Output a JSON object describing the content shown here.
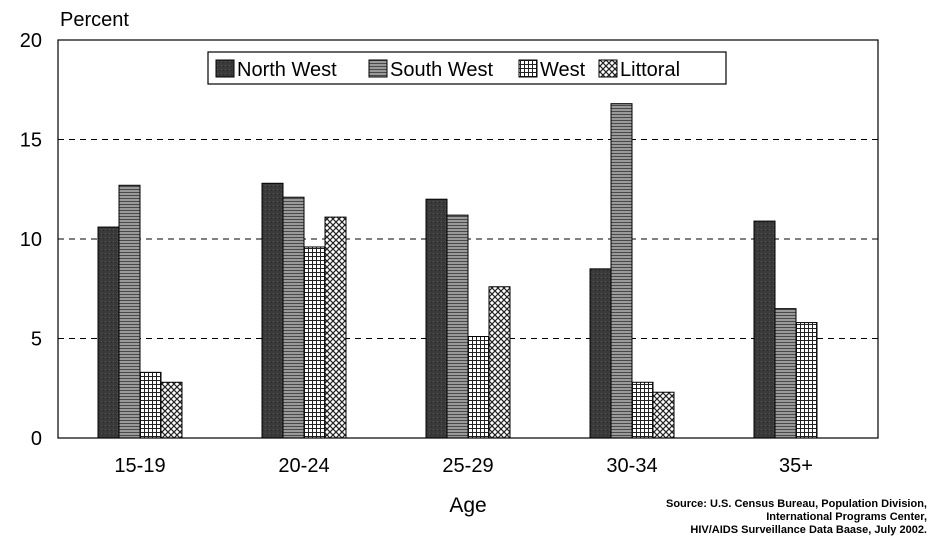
{
  "chart_data": {
    "type": "bar",
    "ylabel": "Percent",
    "xlabel": "Age",
    "ylim": [
      0,
      20
    ],
    "yticks": [
      0,
      5,
      10,
      15,
      20
    ],
    "grid": "dashed horizontal at 5, 10, 15",
    "legend_position": "top",
    "categories": [
      "15-19",
      "20-24",
      "25-29",
      "30-34",
      "35+"
    ],
    "series": [
      {
        "name": "North West",
        "pattern": "dark",
        "values": [
          10.6,
          12.8,
          12.0,
          8.5,
          10.9
        ]
      },
      {
        "name": "South West",
        "pattern": "horizontal-lines",
        "values": [
          12.7,
          12.1,
          11.2,
          16.8,
          6.5
        ]
      },
      {
        "name": "West",
        "pattern": "grid",
        "values": [
          3.3,
          9.6,
          5.1,
          2.8,
          5.8
        ]
      },
      {
        "name": "Littoral",
        "pattern": "crosshatch",
        "values": [
          2.8,
          11.1,
          7.6,
          2.3,
          null
        ]
      }
    ]
  },
  "source_lines": [
    "Source: U.S. Census Bureau, Population Division,",
    "International Programs Center,",
    "HIV/AIDS Surveillance Data Baase, July 2002."
  ]
}
